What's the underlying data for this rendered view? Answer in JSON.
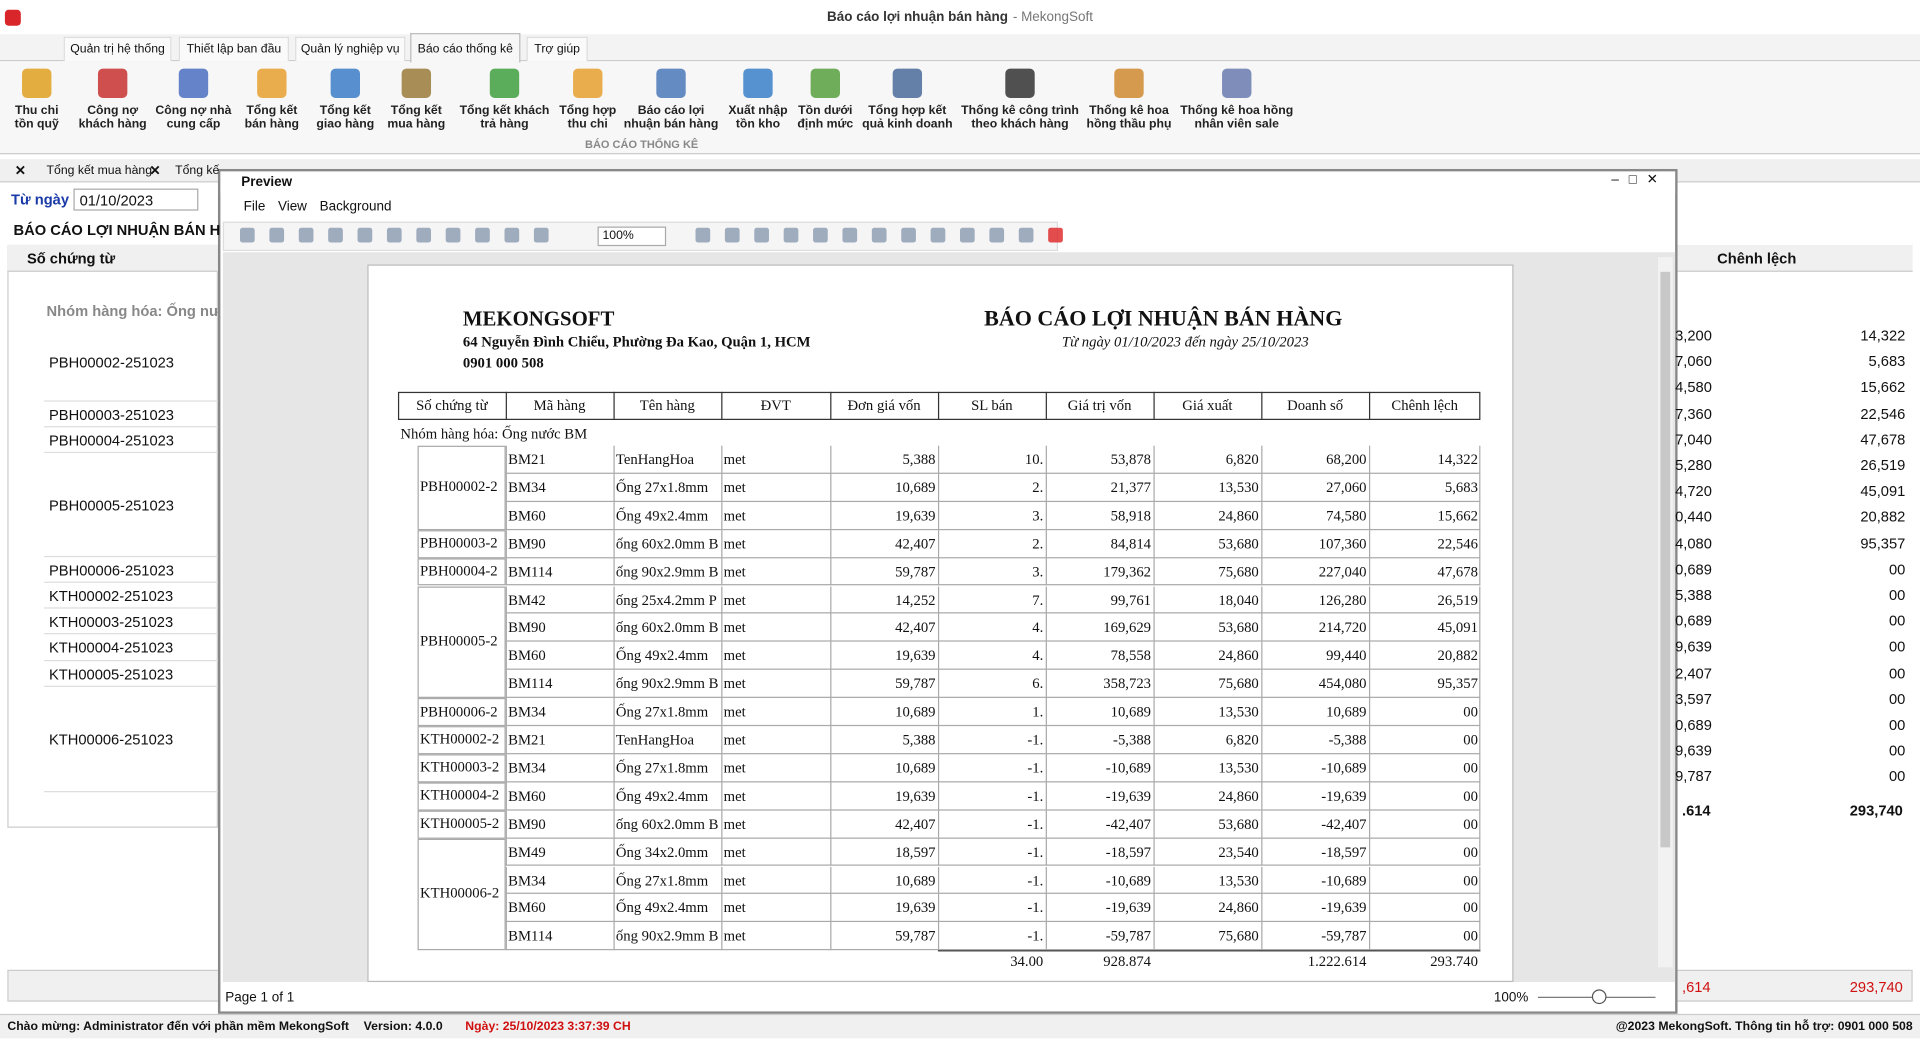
{
  "window": {
    "title": "Báo cáo lợi nhuận bán hàng",
    "app": "- MekongSoft"
  },
  "menu_tabs": [
    "Quản trị hệ thống",
    "Thiết lập ban đầu",
    "Quản lý nghiệp vụ",
    "Báo cáo thống kê",
    "Trợ giúp"
  ],
  "ribbon": {
    "buttons": [
      [
        "Thu chi",
        "tồn quỹ"
      ],
      [
        "Công nợ",
        "khách hàng"
      ],
      [
        "Công nợ nhà",
        "cung cấp"
      ],
      [
        "Tổng kết",
        "bán hàng"
      ],
      [
        "Tổng kết",
        "giao hàng"
      ],
      [
        "Tổng kết",
        "mua hàng"
      ],
      [
        "Tổng kết khách",
        "trả hàng"
      ],
      [
        "Tổng hợp",
        "thu chi"
      ],
      [
        "Báo cáo lợi",
        "nhuận bán hàng"
      ],
      [
        "Xuất nhập",
        "tồn kho"
      ],
      [
        "Tồn dưới",
        "định mức"
      ],
      [
        "Tổng hợp kết",
        "quả kinh doanh"
      ],
      [
        "Thống kê công trình",
        "theo khách hàng"
      ],
      [
        "Thống kê hoa",
        "hồng thầu phụ"
      ],
      [
        "Thống kê hoa hồng",
        "nhân viên sale"
      ]
    ],
    "group": "BÁO CÁO THỐNG KÊ"
  },
  "doc_tabs": [
    "Tổng kết mua hàng",
    "Tổng kế"
  ],
  "filter": {
    "label": "Từ ngày",
    "value": "01/10/2023"
  },
  "background_grid": {
    "heading": "BÁO CÁO LỢI NHUẬN BÁN H",
    "column": "Số chứng từ",
    "group": "Nhóm hàng hóa: Ống nư",
    "rows": [
      "PBH00002-251023",
      "PBH00003-251023",
      "PBH00004-251023",
      "PBH00005-251023",
      "PBH00006-251023",
      "KTH00002-251023",
      "KTH00003-251023",
      "KTH00004-251023",
      "KTH00005-251023",
      "KTH00006-251023"
    ],
    "right_column": "Chênh lệch",
    "partial_values": [
      "3,200",
      "7,060",
      "4,580",
      "7,360",
      "7,040",
      "5,280",
      "4,720",
      "0,440",
      "4,080",
      "0,689",
      "5,388",
      "0,689",
      "9,639",
      "2,407",
      "3,597",
      "0,689",
      "9,639",
      "9,787"
    ],
    "values": [
      "14,322",
      "5,683",
      "15,662",
      "22,546",
      "47,678",
      "26,519",
      "45,091",
      "20,882",
      "95,357",
      "00",
      "00",
      "00",
      "00",
      "00",
      "00",
      "00",
      "00",
      "00"
    ],
    "partial_total": ".614",
    "total": "293,740",
    "footer_partial": ",614",
    "footer_total": "293,740"
  },
  "preview": {
    "title": "Preview",
    "menu": [
      "File",
      "View",
      "Background"
    ],
    "zoom": "100%",
    "page": "Page 1 of 1",
    "zoom_status": "100%",
    "report": {
      "company": "MEKONGSOFT",
      "address": "64 Nguyễn Đình Chiểu, Phường Đa Kao, Quận 1, HCM",
      "phone": "0901 000 508",
      "title": "BÁO CÁO LỢI NHUẬN BÁN HÀNG",
      "subtitle": "Từ ngày 01/10/2023 đến ngày 25/10/2023",
      "headers": [
        "Số chứng từ",
        "Mã hàng",
        "Tên hàng",
        "ĐVT",
        "Đơn giá vốn",
        "SL bán",
        "Giá trị vốn",
        "Giá xuất",
        "Doanh số",
        "Chênh lệch"
      ],
      "group": "Nhóm hàng hóa: Ống nước BM",
      "vouchers": [
        {
          "voucher": "PBH00002-2",
          "items": [
            [
              "BM21",
              "TenHangHoa",
              "met",
              "5,388",
              "10.",
              "53,878",
              "6,820",
              "68,200",
              "14,322"
            ],
            [
              "BM34",
              "Ống 27x1.8mm",
              "met",
              "10,689",
              "2.",
              "21,377",
              "13,530",
              "27,060",
              "5,683"
            ],
            [
              "BM60",
              "Ống 49x2.4mm",
              "met",
              "19,639",
              "3.",
              "58,918",
              "24,860",
              "74,580",
              "15,662"
            ]
          ]
        },
        {
          "voucher": "PBH00003-2",
          "items": [
            [
              "BM90",
              "ống 60x2.0mm B",
              "met",
              "42,407",
              "2.",
              "84,814",
              "53,680",
              "107,360",
              "22,546"
            ]
          ]
        },
        {
          "voucher": "PBH00004-2",
          "items": [
            [
              "BM114",
              "ống 90x2.9mm B",
              "met",
              "59,787",
              "3.",
              "179,362",
              "75,680",
              "227,040",
              "47,678"
            ]
          ]
        },
        {
          "voucher": "PBH00005-2",
          "items": [
            [
              "BM42",
              "ống 25x4.2mm P",
              "met",
              "14,252",
              "7.",
              "99,761",
              "18,040",
              "126,280",
              "26,519"
            ],
            [
              "BM90",
              "ống 60x2.0mm B",
              "met",
              "42,407",
              "4.",
              "169,629",
              "53,680",
              "214,720",
              "45,091"
            ],
            [
              "BM60",
              "Ống 49x2.4mm",
              "met",
              "19,639",
              "4.",
              "78,558",
              "24,860",
              "99,440",
              "20,882"
            ],
            [
              "BM114",
              "ống 90x2.9mm B",
              "met",
              "59,787",
              "6.",
              "358,723",
              "75,680",
              "454,080",
              "95,357"
            ]
          ]
        },
        {
          "voucher": "PBH00006-2",
          "items": [
            [
              "BM34",
              "Ống 27x1.8mm",
              "met",
              "10,689",
              "1.",
              "10,689",
              "13,530",
              "10,689",
              "00"
            ]
          ]
        },
        {
          "voucher": "KTH00002-2",
          "items": [
            [
              "BM21",
              "TenHangHoa",
              "met",
              "5,388",
              "-1.",
              "-5,388",
              "6,820",
              "-5,388",
              "00"
            ]
          ]
        },
        {
          "voucher": "KTH00003-2",
          "items": [
            [
              "BM34",
              "Ống 27x1.8mm",
              "met",
              "10,689",
              "-1.",
              "-10,689",
              "13,530",
              "-10,689",
              "00"
            ]
          ]
        },
        {
          "voucher": "KTH00004-2",
          "items": [
            [
              "BM60",
              "Ống 49x2.4mm",
              "met",
              "19,639",
              "-1.",
              "-19,639",
              "24,860",
              "-19,639",
              "00"
            ]
          ]
        },
        {
          "voucher": "KTH00005-2",
          "items": [
            [
              "BM90",
              "ống 60x2.0mm B",
              "met",
              "42,407",
              "-1.",
              "-42,407",
              "53,680",
              "-42,407",
              "00"
            ]
          ]
        },
        {
          "voucher": "KTH00006-2",
          "items": [
            [
              "BM49",
              "Ống 34x2.0mm",
              "met",
              "18,597",
              "-1.",
              "-18,597",
              "23,540",
              "-18,597",
              "00"
            ],
            [
              "BM34",
              "Ống 27x1.8mm",
              "met",
              "10,689",
              "-1.",
              "-10,689",
              "13,530",
              "-10,689",
              "00"
            ],
            [
              "BM60",
              "Ống 49x2.4mm",
              "met",
              "19,639",
              "-1.",
              "-19,639",
              "24,860",
              "-19,639",
              "00"
            ],
            [
              "BM114",
              "ống 90x2.9mm B",
              "met",
              "59,787",
              "-1.",
              "-59,787",
              "75,680",
              "-59,787",
              "00"
            ]
          ]
        }
      ],
      "totals": {
        "quantity": "34.00",
        "cost": "928.874",
        "revenue": "1.222.614",
        "difference": "293.740"
      }
    }
  },
  "status_bar": {
    "welcome": "Chào mừng: Administrator đến với phần mềm MekongSoft",
    "version": "Version: 4.0.0",
    "date": "Ngày: 25/10/2023 3:37:39 CH",
    "support": "@2023 MekongSoft. Thông tin hỗ trợ: 0901 000 508"
  }
}
